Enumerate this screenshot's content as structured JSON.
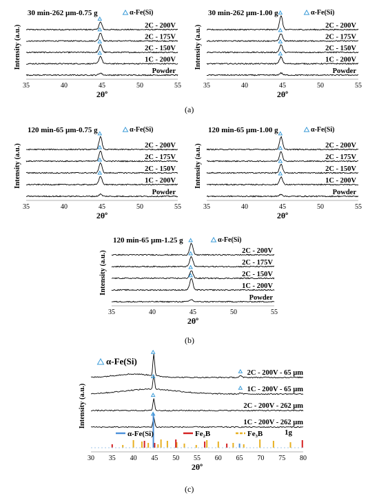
{
  "captions": {
    "a": "(a)",
    "b": "(b)",
    "c": "(c)"
  },
  "chart_data": [
    {
      "id": "a1",
      "type": "line",
      "title": "30 min-262 µm-0.75 g",
      "xlabel": "2θº",
      "ylabel": "Intensity (a.u.)",
      "xlim": [
        35,
        55
      ],
      "xticks": [
        35,
        40,
        45,
        50,
        55
      ],
      "legend": {
        "marker": "triangle",
        "label": "α-Fe(Si)",
        "placement": "top-right"
      },
      "series": [
        {
          "name": "2C - 200V",
          "peak_x": 44.8,
          "peak_height": 0.55
        },
        {
          "name": "2C - 175V",
          "peak_x": 44.8,
          "peak_height": 0.6
        },
        {
          "name": "2C - 150V",
          "peak_x": 44.8,
          "peak_height": 0.55
        },
        {
          "name": "1C - 200V",
          "peak_x": 44.8,
          "peak_height": 0.55
        },
        {
          "name": "Powder",
          "peak_x": 44.8,
          "peak_height": 0.15
        }
      ]
    },
    {
      "id": "a2",
      "type": "line",
      "title": "30 min-262 µm-1.00 g",
      "xlabel": "2θº",
      "ylabel": "Intensity (a.u.)",
      "xlim": [
        35,
        55
      ],
      "xticks": [
        35,
        40,
        45,
        50,
        55
      ],
      "legend": {
        "marker": "triangle",
        "label": "α-Fe(Si)",
        "placement": "top-right"
      },
      "series": [
        {
          "name": "2C - 200V",
          "peak_x": 44.8,
          "peak_height": 1.0
        },
        {
          "name": "2C - 175V",
          "peak_x": 44.8,
          "peak_height": 0.55
        },
        {
          "name": "2C - 150V",
          "peak_x": 44.8,
          "peak_height": 0.55
        },
        {
          "name": "1C - 200V",
          "peak_x": 44.8,
          "peak_height": 0.5
        },
        {
          "name": "Powder",
          "peak_x": 44.8,
          "peak_height": 0.15
        }
      ]
    },
    {
      "id": "a3",
      "type": "line",
      "title": "120 min-65 µm-0.75 g",
      "xlabel": "2θº",
      "ylabel": "Intensity (a.u.)",
      "xlim": [
        35,
        55
      ],
      "xticks": [
        35,
        40,
        45,
        50,
        55
      ],
      "legend": {
        "marker": "triangle",
        "label": "α-Fe(Si)",
        "placement": "top-right"
      },
      "series": [
        {
          "name": "2C - 200V",
          "peak_x": 44.8,
          "peak_height": 0.9
        },
        {
          "name": "2C - 175V",
          "peak_x": 44.8,
          "peak_height": 0.75
        },
        {
          "name": "2C - 150V",
          "peak_x": 44.8,
          "peak_height": 0.7
        },
        {
          "name": "1C - 200V",
          "peak_x": 44.8,
          "peak_height": 0.6
        },
        {
          "name": "Powder",
          "peak_x": 44.8,
          "peak_height": 0.15
        }
      ]
    },
    {
      "id": "a4",
      "type": "line",
      "title": "120 min-65 µm-1.00 g",
      "xlabel": "2θº",
      "ylabel": "Intensity (a.u.)",
      "xlim": [
        35,
        55
      ],
      "xticks": [
        35,
        40,
        45,
        50,
        55
      ],
      "legend": {
        "marker": "triangle",
        "label": "α-Fe(Si)",
        "placement": "top-right"
      },
      "series": [
        {
          "name": "2C - 200V",
          "peak_x": 44.8,
          "peak_height": 0.9
        },
        {
          "name": "2C - 175V",
          "peak_x": 44.8,
          "peak_height": 0.7
        },
        {
          "name": "2C - 150V",
          "peak_x": 44.8,
          "peak_height": 0.6
        },
        {
          "name": "1C - 200V",
          "peak_x": 44.8,
          "peak_height": 0.55
        },
        {
          "name": "Powder",
          "peak_x": 44.8,
          "peak_height": 0.15
        }
      ]
    },
    {
      "id": "b1",
      "type": "line",
      "title": "120 min-65 µm-1.25 g",
      "xlabel": "2θº",
      "ylabel": "Intensity (a.u.)",
      "xlim": [
        35,
        55
      ],
      "xticks": [
        35,
        40,
        45,
        50,
        55
      ],
      "legend": {
        "marker": "triangle",
        "label": "α-Fe(Si)",
        "placement": "top-right"
      },
      "series": [
        {
          "name": "2C - 200V",
          "peak_x": 44.8,
          "peak_height": 0.8
        },
        {
          "name": "2C - 175V",
          "peak_x": 44.8,
          "peak_height": 0.7
        },
        {
          "name": "2C - 150V",
          "peak_x": 44.8,
          "peak_height": 0.55
        },
        {
          "name": "1C - 200V",
          "peak_x": 44.8,
          "peak_height": 0.8
        },
        {
          "name": "Powder",
          "peak_x": 44.8,
          "peak_height": 0.15
        }
      ]
    },
    {
      "id": "c1",
      "type": "line",
      "xlabel": "2θº",
      "ylabel": "Intensity (a.u.)",
      "xlim": [
        30,
        80
      ],
      "xticks": [
        30,
        35,
        40,
        45,
        50,
        55,
        60,
        65,
        70,
        75,
        80
      ],
      "annotation": "1g",
      "legend": {
        "marker": "triangle",
        "label": "α-Fe(Si)",
        "placement": "top-left"
      },
      "reference_legend": [
        {
          "label": "α-Fe(Si)",
          "color": "#4a90d9"
        },
        {
          "label": "Fe₂B",
          "color": "#d42020"
        },
        {
          "label": "Fe₃B",
          "color": "#e8b020"
        }
      ],
      "series": [
        {
          "name": "2C - 200V - 65 µm",
          "peak_x": 44.8,
          "peak_height": 1.0,
          "secondary_peak_x": 65.2
        },
        {
          "name": "1C - 200V - 65 µm",
          "peak_x": 44.8,
          "peak_height": 0.65,
          "secondary_peak_x": 65.2
        },
        {
          "name": "2C - 200V - 262 µm",
          "peak_x": 44.8,
          "peak_height": 0.55
        },
        {
          "name": "1C - 200V - 262 µm",
          "peak_x": 44.8,
          "peak_height": 0.45
        }
      ],
      "reference_lines": {
        "alpha_fe_si": [
          44.7,
          65.0
        ],
        "fe2b": [
          35.0,
          42.6,
          45.0,
          50.0,
          56.8,
          62.0,
          79.8
        ],
        "fe3b": [
          37.5,
          40.0,
          42.0,
          43.5,
          45.8,
          46.5,
          48.0,
          50.2,
          52.0,
          54.8,
          57.3,
          60.0,
          63.5,
          66.0,
          69.8,
          73.0,
          77.0
        ]
      }
    }
  ],
  "colors": {
    "marker": "#3a9bd8",
    "trace": "#000000"
  }
}
